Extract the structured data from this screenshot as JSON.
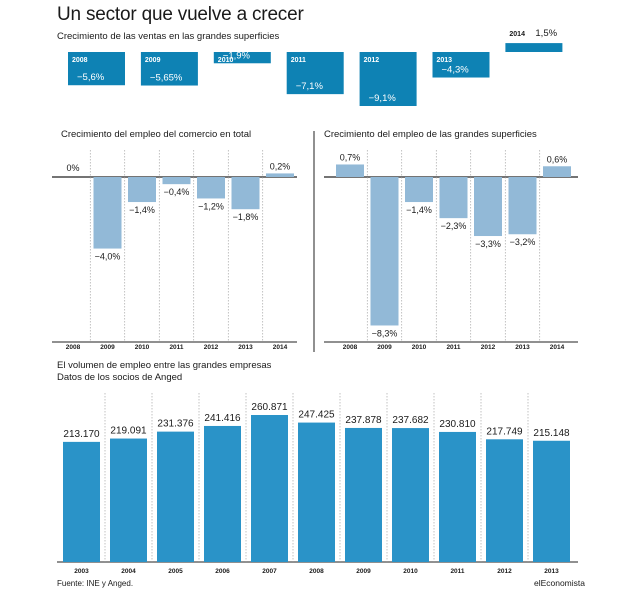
{
  "headline": "Un sector que vuelve a crecer",
  "source": "Fuente: INE y Anged.",
  "brand": "elEconomista",
  "colors": {
    "sales_bar": "#0e82b4",
    "employment_bar": "#92b9d7",
    "volume_bar": "#2a93c8",
    "axis": "#222222",
    "grid": "#999999"
  },
  "chart_data": [
    {
      "id": "sales",
      "type": "bar",
      "title": "Crecimiento de las ventas en las grandes superficies",
      "categories": [
        "2008",
        "2009",
        "2010",
        "2011",
        "2012",
        "2013",
        "2014"
      ],
      "values": [
        -5.6,
        -5.65,
        -1.9,
        -7.1,
        -9.1,
        -4.3,
        1.5
      ],
      "labels": [
        "−5,6%",
        "−5,65%",
        "−1,9%",
        "−7,1%",
        "−9,1%",
        "−4,3%",
        "1,5%"
      ],
      "ylim": [
        -9.1,
        1.5
      ],
      "xlabel": "",
      "ylabel": "",
      "grid": false,
      "legend": "none"
    },
    {
      "id": "employment_total",
      "type": "bar",
      "title": "Crecimiento del empleo del comercio en total",
      "categories": [
        "2008",
        "2009",
        "2010",
        "2011",
        "2012",
        "2013",
        "2014"
      ],
      "values": [
        0,
        -4.0,
        -1.4,
        -0.4,
        -1.2,
        -1.8,
        0.2
      ],
      "labels": [
        "0%",
        "−4,0%",
        "−1,4%",
        "−0,4%",
        "−1,2%",
        "−1,8%",
        "0,2%"
      ],
      "ylim": [
        -9.0,
        1.0
      ],
      "xlabel": "",
      "ylabel": "",
      "grid": true,
      "legend": "none"
    },
    {
      "id": "employment_large",
      "type": "bar",
      "title": "Crecimiento del empleo de las grandes superficies",
      "categories": [
        "2008",
        "2009",
        "2010",
        "2011",
        "2012",
        "2013",
        "2014"
      ],
      "values": [
        0.7,
        -8.3,
        -1.4,
        -2.3,
        -3.3,
        -3.2,
        0.6
      ],
      "labels": [
        "0,7%",
        "−8,3%",
        "−1,4%",
        "−2,3%",
        "−3,3%",
        "−3,2%",
        "0,6%"
      ],
      "ylim": [
        -9.0,
        1.0
      ],
      "xlabel": "",
      "ylabel": "",
      "grid": true,
      "legend": "none"
    },
    {
      "id": "volume",
      "type": "bar",
      "title": "El volumen de empleo entre las grandes empresas",
      "subtitle": "Datos de los socios de Anged",
      "categories": [
        "2003",
        "2004",
        "2005",
        "2006",
        "2007",
        "2008",
        "2009",
        "2010",
        "2011",
        "2012",
        "2013"
      ],
      "values": [
        213170,
        219091,
        231376,
        241416,
        260871,
        247425,
        237878,
        237682,
        230810,
        217749,
        215148
      ],
      "labels": [
        "213.170",
        "219.091",
        "231.376",
        "241.416",
        "260.871",
        "247.425",
        "237.878",
        "237.682",
        "230.810",
        "217.749",
        "215.148"
      ],
      "ylim": [
        0,
        270000
      ],
      "xlabel": "",
      "ylabel": "",
      "grid": true,
      "legend": "none"
    }
  ]
}
